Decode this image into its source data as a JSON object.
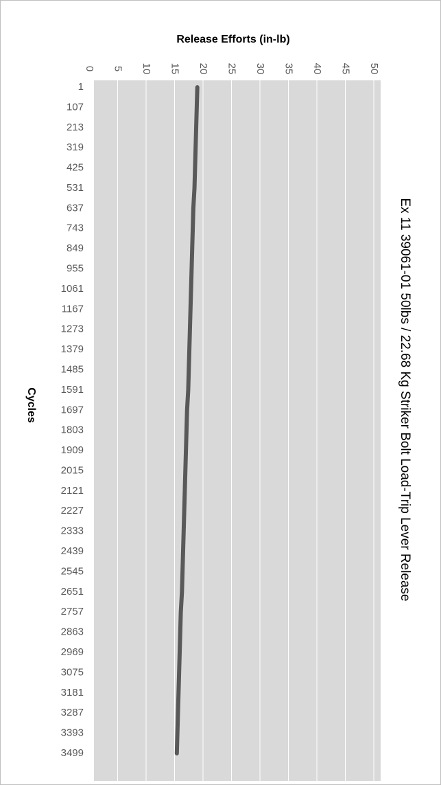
{
  "chart_data": {
    "type": "line",
    "title": "Ex 11 39061-01 50lbs / 22.68 Kg Striker Bolt Load-Trip Lever Release",
    "x_label": "Cycles",
    "y_label": "Release Efforts (in-lb)",
    "categories": [
      "1",
      "107",
      "213",
      "319",
      "425",
      "531",
      "637",
      "743",
      "849",
      "955",
      "1061",
      "1167",
      "1273",
      "1379",
      "1485",
      "1591",
      "1697",
      "1803",
      "1909",
      "2015",
      "2121",
      "2227",
      "2333",
      "2439",
      "2545",
      "2651",
      "2757",
      "2863",
      "2969",
      "3075",
      "3181",
      "3287",
      "3393",
      "3499"
    ],
    "series": [
      {
        "name": "Release Efforts",
        "color": "#595959",
        "values": [
          19.0,
          18.9,
          18.8,
          18.7,
          18.6,
          18.5,
          18.3,
          18.2,
          18.1,
          18.0,
          17.9,
          17.8,
          17.7,
          17.6,
          17.5,
          17.4,
          17.2,
          17.1,
          17.0,
          16.9,
          16.8,
          16.7,
          16.6,
          16.5,
          16.4,
          16.3,
          16.1,
          16.0,
          15.9,
          15.8,
          15.7,
          15.6,
          15.5,
          15.4
        ]
      }
    ],
    "ylim": [
      0,
      50
    ],
    "yticks": [
      0,
      5,
      10,
      15,
      20,
      25,
      30,
      35,
      40,
      45,
      50
    ],
    "grid": true
  }
}
